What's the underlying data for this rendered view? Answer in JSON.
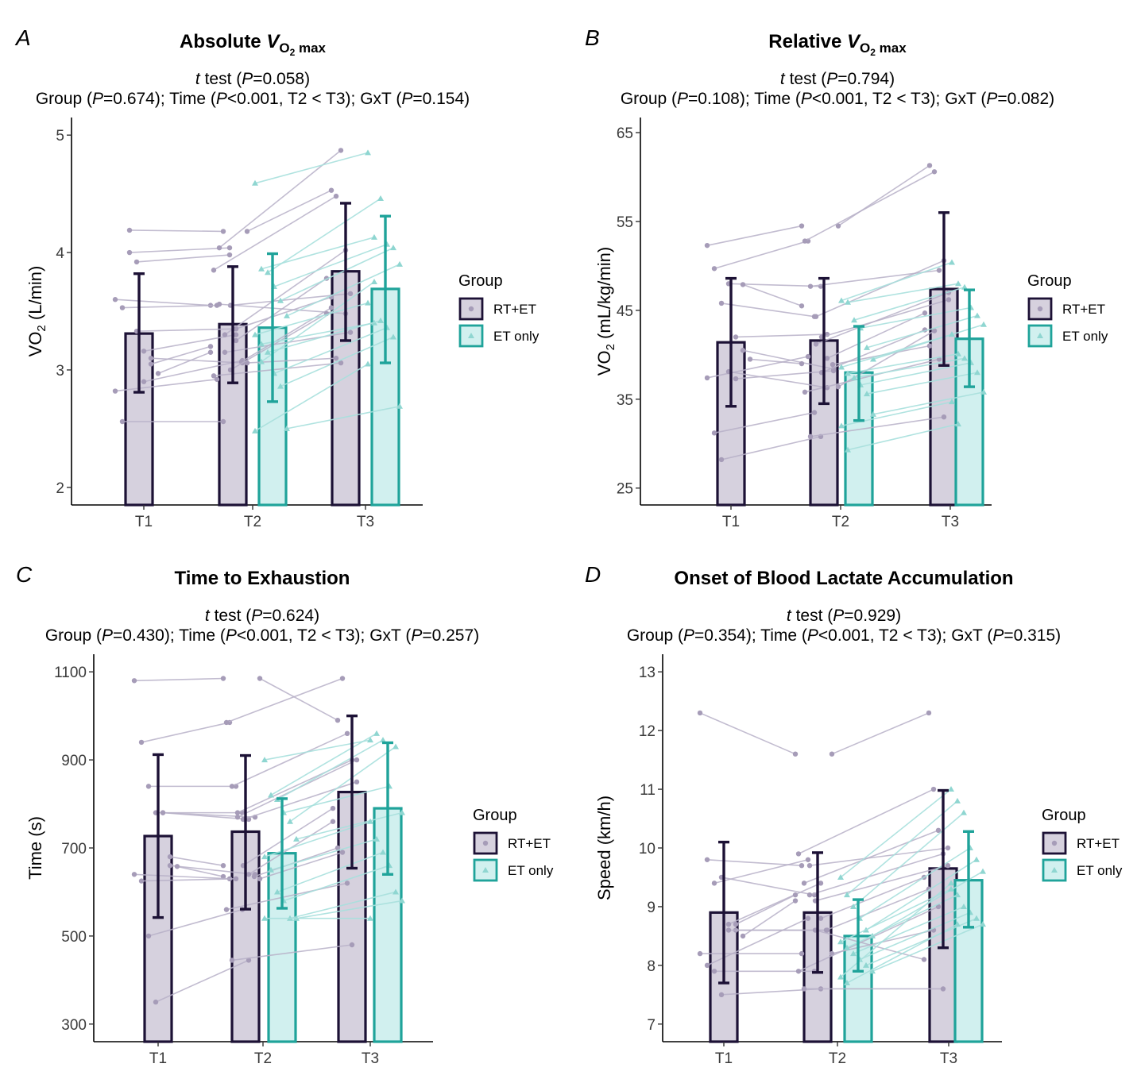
{
  "figure": {
    "colors": {
      "rt_et_fill": "#d6d1de",
      "rt_et_stroke": "#1c1135",
      "et_fill": "#d1f0ef",
      "et_stroke": "#1fa39a",
      "rt_et_line": "#b8b1c8",
      "et_line": "#a8e0dd",
      "rt_et_point": "#a69cb8",
      "et_point": "#8fd6d1"
    },
    "legend": {
      "title": "Group",
      "entries": [
        "RT+ET",
        "ET only"
      ],
      "placement": "right"
    }
  },
  "chart_data": [
    {
      "type": "bar",
      "panel": "A",
      "title_main": "Absolute ",
      "title_v": "V",
      "title_sub_o": "O",
      "title_sub_2": "2",
      "title_sub_max": " max",
      "ttest_t": "t",
      "ttest_mid": " test (",
      "ttest_p": "P",
      "ttest_val": "=0.058)",
      "stats_parts": [
        "Group (",
        "P",
        "=0.674); Time (",
        "P",
        "<0.001, T2 < T3); GxT (",
        "P",
        "=0.154)"
      ],
      "ylabel_main": "VO",
      "ylabel_sub": "2",
      "ylabel_unit": " (L/min)",
      "ylim": [
        1.85,
        5.15
      ],
      "yticks": [
        2,
        3,
        4,
        5
      ],
      "ytick_labels": [
        "2",
        "3",
        "4",
        "5"
      ],
      "categories": [
        "T1",
        "T2",
        "T3"
      ],
      "series": [
        {
          "name": "RT+ET",
          "values": [
            3.31,
            3.39,
            3.84
          ],
          "error": [
            [
              2.81,
              3.82
            ],
            [
              2.89,
              3.88
            ],
            [
              3.25,
              4.42
            ]
          ]
        },
        {
          "name": "ET only",
          "values": [
            null,
            3.36,
            3.69
          ],
          "error": [
            null,
            [
              2.73,
              3.99
            ],
            [
              3.06,
              4.31
            ]
          ]
        }
      ],
      "rt_pairs": [
        [
          3.6,
          3.55
        ],
        [
          3.53,
          3.55
        ],
        [
          4.19,
          4.18
        ],
        [
          3.92,
          3.98
        ],
        [
          3.16,
          3.3
        ],
        [
          3.1,
          3.06
        ],
        [
          2.97,
          3.15
        ],
        [
          2.82,
          2.92
        ],
        [
          2.56,
          2.56
        ],
        [
          4.0,
          4.04
        ],
        [
          3.33,
          3.35
        ],
        [
          2.9,
          3.08
        ],
        [
          3.05,
          3.2
        ],
        [
          4.18,
          4.53
        ],
        [
          3.85,
          4.48
        ],
        [
          4.04,
          4.87
        ],
        [
          3.3,
          4.02
        ],
        [
          3.55,
          3.65
        ],
        [
          3.25,
          3.78
        ],
        [
          3.07,
          3.53
        ],
        [
          3.06,
          3.1
        ],
        [
          2.95,
          3.06
        ],
        [
          3.56,
          3.48
        ],
        [
          3.15,
          3.32
        ],
        [
          3.0,
          3.48
        ],
        [
          3.35,
          3.62
        ]
      ],
      "et_pairs": [
        [
          4.59,
          4.85
        ],
        [
          3.86,
          4.13
        ],
        [
          3.83,
          4.46
        ],
        [
          3.71,
          4.07
        ],
        [
          3.59,
          4.04
        ],
        [
          3.46,
          3.9
        ],
        [
          3.3,
          3.57
        ],
        [
          3.22,
          3.4
        ],
        [
          3.15,
          3.42
        ],
        [
          2.97,
          3.36
        ],
        [
          2.86,
          3.28
        ],
        [
          2.5,
          2.69
        ],
        [
          2.48,
          3.05
        ],
        [
          3.07,
          3.75
        ]
      ]
    },
    {
      "type": "bar",
      "panel": "B",
      "title_main": "Relative ",
      "title_v": "V",
      "title_sub_o": "O",
      "title_sub_2": "2",
      "title_sub_max": " max",
      "ttest_t": "t",
      "ttest_mid": " test (",
      "ttest_p": "P",
      "ttest_val": "=0.794)",
      "stats_parts": [
        "Group (",
        "P",
        "=0.108); Time (",
        "P",
        "<0.001, T2 < T3); GxT (",
        "P",
        "=0.082)"
      ],
      "ylabel_main": "VO",
      "ylabel_sub": "2",
      "ylabel_unit": " (mL/kg/min)",
      "ylim": [
        23.1,
        66.7
      ],
      "yticks": [
        25,
        35,
        45,
        55,
        65
      ],
      "ytick_labels": [
        "25",
        "35",
        "45",
        "55",
        "65"
      ],
      "categories": [
        "T1",
        "T2",
        "T3"
      ],
      "series": [
        {
          "name": "RT+ET",
          "values": [
            41.4,
            41.6,
            47.4
          ],
          "error": [
            [
              34.2,
              48.6
            ],
            [
              34.5,
              48.6
            ],
            [
              38.8,
              56.0
            ]
          ]
        },
        {
          "name": "ET only",
          "values": [
            null,
            38.0,
            41.8
          ],
          "error": [
            null,
            [
              32.6,
              43.2
            ],
            [
              36.4,
              47.3
            ]
          ]
        }
      ],
      "rt_pairs": [
        [
          52.3,
          54.5
        ],
        [
          49.7,
          52.8
        ],
        [
          45.8,
          44.3
        ],
        [
          48.0,
          47.7
        ],
        [
          42.0,
          42.3
        ],
        [
          40.5,
          38.4
        ],
        [
          39.5,
          39.0
        ],
        [
          37.4,
          39.8
        ],
        [
          31.2,
          33.5
        ],
        [
          28.2,
          30.8
        ],
        [
          38.1,
          36.3
        ],
        [
          37.3,
          38.2
        ],
        [
          47.9,
          45.5
        ],
        [
          54.5,
          61.3
        ],
        [
          52.8,
          60.6
        ],
        [
          47.7,
          49.5
        ],
        [
          44.3,
          50.6
        ],
        [
          42.0,
          46.2
        ],
        [
          39.6,
          44.7
        ],
        [
          38.9,
          41.0
        ],
        [
          36.4,
          42.7
        ],
        [
          35.8,
          39.5
        ],
        [
          30.8,
          33.0
        ],
        [
          41.2,
          47.0
        ],
        [
          38.0,
          42.8
        ]
      ],
      "et_pairs": [
        [
          46.1,
          50.4
        ],
        [
          45.9,
          48.0
        ],
        [
          43.9,
          47.6
        ],
        [
          43.0,
          45.3
        ],
        [
          40.8,
          44.4
        ],
        [
          39.5,
          43.4
        ],
        [
          38.6,
          42.3
        ],
        [
          37.9,
          40.1
        ],
        [
          37.4,
          39.6
        ],
        [
          36.6,
          39.1
        ],
        [
          35.6,
          38.0
        ],
        [
          33.3,
          35.8
        ],
        [
          32.0,
          34.7
        ],
        [
          29.3,
          32.2
        ]
      ]
    },
    {
      "type": "bar",
      "panel": "C",
      "title_main": "Time to Exhaustion",
      "ttest_t": "t",
      "ttest_mid": " test (",
      "ttest_p": "P",
      "ttest_val": "=0.624)",
      "stats_parts": [
        "Group (",
        "P",
        "=0.430); Time (",
        "P",
        "<0.001, T2 < T3); GxT (",
        "P",
        "=0.257)"
      ],
      "ylabel_main": "Time (s)",
      "ylabel_sub": "",
      "ylabel_unit": "",
      "ylim": [
        260,
        1140
      ],
      "yticks": [
        300,
        500,
        700,
        900,
        1100
      ],
      "ytick_labels": [
        "300",
        "500",
        "700",
        "900",
        "1100"
      ],
      "categories": [
        "T1",
        "T2",
        "T3"
      ],
      "series": [
        {
          "name": "RT+ET",
          "values": [
            727,
            737,
            827
          ],
          "error": [
            [
              542,
              912
            ],
            [
              561,
              910
            ],
            [
              654,
              1000
            ]
          ]
        },
        {
          "name": "ET only",
          "values": [
            null,
            688,
            790
          ],
          "error": [
            null,
            [
              563,
              812
            ],
            [
              640,
              939
            ]
          ]
        }
      ],
      "rt_pairs": [
        [
          1080,
          1085
        ],
        [
          940,
          985
        ],
        [
          840,
          840
        ],
        [
          780,
          780
        ],
        [
          780,
          765
        ],
        [
          660,
          640
        ],
        [
          658,
          635
        ],
        [
          640,
          630
        ],
        [
          625,
          630
        ],
        [
          500,
          560
        ],
        [
          350,
          445
        ],
        [
          780,
          770
        ],
        [
          680,
          660
        ],
        [
          1085,
          990
        ],
        [
          985,
          1085
        ],
        [
          840,
          960
        ],
        [
          780,
          900
        ],
        [
          765,
          850
        ],
        [
          640,
          760
        ],
        [
          635,
          700
        ],
        [
          630,
          690
        ],
        [
          560,
          620
        ],
        [
          445,
          480
        ],
        [
          770,
          900
        ],
        [
          660,
          790
        ]
      ],
      "et_pairs": [
        [
          900,
          945
        ],
        [
          820,
          960
        ],
        [
          810,
          945
        ],
        [
          780,
          840
        ],
        [
          760,
          930
        ],
        [
          720,
          780
        ],
        [
          680,
          760
        ],
        [
          650,
          720
        ],
        [
          600,
          690
        ],
        [
          580,
          660
        ],
        [
          540,
          600
        ],
        [
          540,
          580
        ],
        [
          540,
          540
        ]
      ]
    },
    {
      "type": "bar",
      "panel": "D",
      "title_main": "Onset of Blood Lactate Accumulation",
      "ttest_t": "t",
      "ttest_mid": " test (",
      "ttest_p": "P",
      "ttest_val": "=0.929)",
      "stats_parts": [
        "Group (",
        "P",
        "=0.354); Time (",
        "P",
        "<0.001, T2 < T3); GxT (",
        "P",
        "=0.315)"
      ],
      "ylabel_main": "Speed (km/h)",
      "ylabel_sub": "",
      "ylabel_unit": "",
      "ylim": [
        6.7,
        13.3
      ],
      "yticks": [
        7,
        8,
        9,
        10,
        11,
        12,
        13
      ],
      "ytick_labels": [
        "7",
        "8",
        "9",
        "10",
        "11",
        "12",
        "13"
      ],
      "categories": [
        "T1",
        "T2",
        "T3"
      ],
      "series": [
        {
          "name": "RT+ET",
          "values": [
            8.9,
            8.9,
            9.65
          ],
          "error": [
            [
              7.7,
              10.1
            ],
            [
              7.88,
              9.92
            ],
            [
              8.3,
              10.98
            ]
          ]
        },
        {
          "name": "ET only",
          "values": [
            null,
            8.5,
            9.45
          ],
          "error": [
            null,
            [
              7.9,
              9.12
            ],
            [
              8.65,
              10.28
            ]
          ]
        }
      ],
      "rt_pairs": [
        [
          12.3,
          11.6
        ],
        [
          9.8,
          9.7
        ],
        [
          9.4,
          9.8
        ],
        [
          9.5,
          9.2
        ],
        [
          8.7,
          9.4
        ],
        [
          8.6,
          8.6
        ],
        [
          8.5,
          9.1
        ],
        [
          8.2,
          8.2
        ],
        [
          8.0,
          8.8
        ],
        [
          7.9,
          7.9
        ],
        [
          7.5,
          7.6
        ],
        [
          8.6,
          8.6
        ],
        [
          8.7,
          9.2
        ],
        [
          11.6,
          12.3
        ],
        [
          9.9,
          11.0
        ],
        [
          9.4,
          10.3
        ],
        [
          9.2,
          9.9
        ],
        [
          9.1,
          9.7
        ],
        [
          8.8,
          9.5
        ],
        [
          8.6,
          9.3
        ],
        [
          8.2,
          8.6
        ],
        [
          7.9,
          9.0
        ],
        [
          7.6,
          7.6
        ],
        [
          9.7,
          10.0
        ],
        [
          8.6,
          8.1
        ]
      ],
      "et_pairs": [
        [
          9.5,
          11.0
        ],
        [
          9.2,
          10.8
        ],
        [
          9.0,
          10.6
        ],
        [
          8.8,
          10.0
        ],
        [
          8.6,
          9.8
        ],
        [
          8.5,
          9.6
        ],
        [
          8.4,
          9.3
        ],
        [
          8.3,
          9.2
        ],
        [
          8.2,
          9.0
        ],
        [
          8.1,
          8.9
        ],
        [
          8.0,
          8.8
        ],
        [
          7.9,
          8.7
        ],
        [
          7.8,
          9.4
        ],
        [
          7.7,
          8.7
        ]
      ]
    }
  ]
}
